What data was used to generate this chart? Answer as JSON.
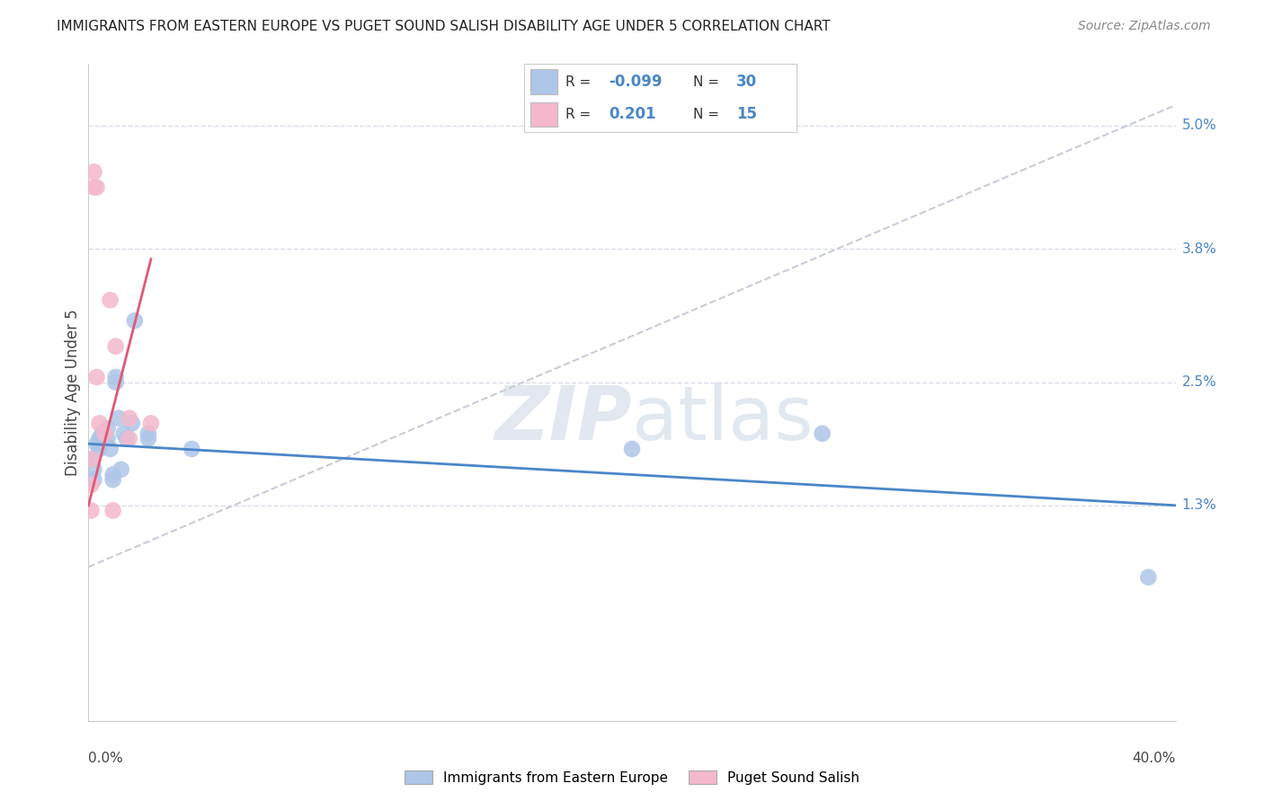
{
  "title": "IMMIGRANTS FROM EASTERN EUROPE VS PUGET SOUND SALISH DISABILITY AGE UNDER 5 CORRELATION CHART",
  "source": "Source: ZipAtlas.com",
  "ylabel": "Disability Age Under 5",
  "xmin": 0.0,
  "xmax": 0.4,
  "ymin": -0.008,
  "ymax": 0.056,
  "legend_R_blue": "-0.099",
  "legend_N_blue": "30",
  "legend_R_pink": "0.201",
  "legend_N_pink": "15",
  "blue_color": "#aec6e8",
  "pink_color": "#f4b8cc",
  "blue_line_color": "#4a86c8",
  "pink_line_color": "#e05878",
  "dashed_line_color": "#c8ccd8",
  "grid_color": "#d8dce8",
  "background_color": "#ffffff",
  "blue_scatter": [
    [
      0.001,
      0.0175
    ],
    [
      0.002,
      0.0165
    ],
    [
      0.002,
      0.0155
    ],
    [
      0.003,
      0.019
    ],
    [
      0.004,
      0.0195
    ],
    [
      0.004,
      0.0185
    ],
    [
      0.005,
      0.0195
    ],
    [
      0.005,
      0.02
    ],
    [
      0.005,
      0.0195
    ],
    [
      0.006,
      0.02
    ],
    [
      0.006,
      0.0195
    ],
    [
      0.007,
      0.0205
    ],
    [
      0.007,
      0.0195
    ],
    [
      0.008,
      0.0185
    ],
    [
      0.009,
      0.016
    ],
    [
      0.009,
      0.0155
    ],
    [
      0.01,
      0.0255
    ],
    [
      0.01,
      0.025
    ],
    [
      0.011,
      0.0215
    ],
    [
      0.012,
      0.0165
    ],
    [
      0.013,
      0.02
    ],
    [
      0.014,
      0.0195
    ],
    [
      0.016,
      0.021
    ],
    [
      0.017,
      0.031
    ],
    [
      0.022,
      0.02
    ],
    [
      0.022,
      0.0195
    ],
    [
      0.038,
      0.0185
    ],
    [
      0.2,
      0.0185
    ],
    [
      0.27,
      0.02
    ],
    [
      0.39,
      0.006
    ]
  ],
  "pink_scatter": [
    [
      0.001,
      0.0175
    ],
    [
      0.001,
      0.015
    ],
    [
      0.001,
      0.0125
    ],
    [
      0.002,
      0.0455
    ],
    [
      0.002,
      0.044
    ],
    [
      0.003,
      0.044
    ],
    [
      0.003,
      0.0255
    ],
    [
      0.004,
      0.021
    ],
    [
      0.006,
      0.02
    ],
    [
      0.008,
      0.033
    ],
    [
      0.009,
      0.0125
    ],
    [
      0.01,
      0.0285
    ],
    [
      0.015,
      0.0215
    ],
    [
      0.015,
      0.0195
    ],
    [
      0.023,
      0.021
    ]
  ],
  "blue_line_x": [
    0.0,
    0.4
  ],
  "blue_line_y": [
    0.019,
    0.013
  ],
  "pink_line_x": [
    0.0,
    0.023
  ],
  "pink_line_y": [
    0.013,
    0.037
  ],
  "dashed_line_x": [
    0.0,
    0.4
  ],
  "dashed_line_y": [
    0.007,
    0.052
  ],
  "ytick_vals": [
    0.013,
    0.025,
    0.038,
    0.05
  ],
  "ytick_labels": [
    "1.3%",
    "2.5%",
    "3.8%",
    "5.0%"
  ]
}
